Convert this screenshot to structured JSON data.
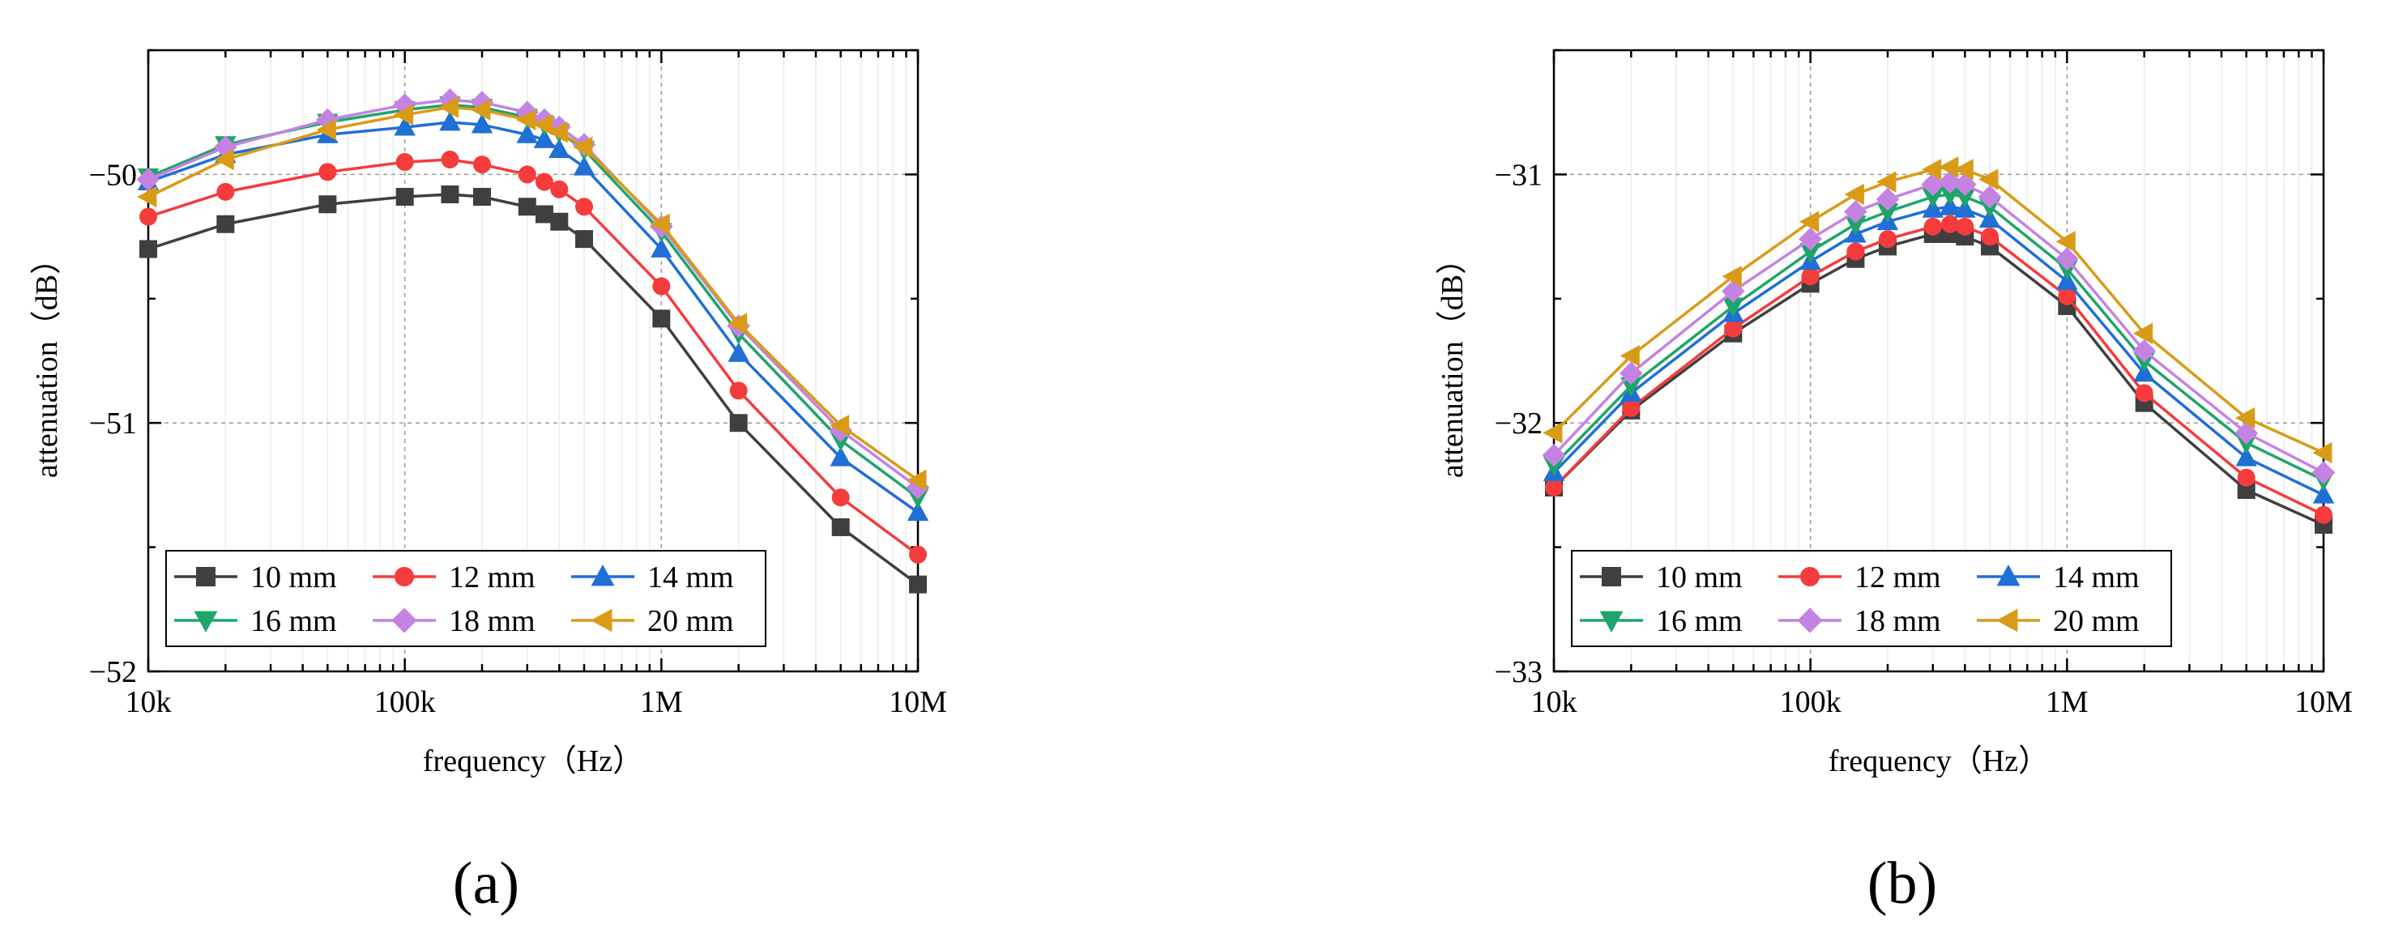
{
  "chart_data": [
    {
      "type": "line",
      "panel_label": "(a)",
      "xlabel": "frequency（Hz）",
      "ylabel": "attenuation（dB）",
      "xscale": "log",
      "xlim": [
        10000,
        10000000
      ],
      "ylim": [
        -52,
        -49.5
      ],
      "xticks": [
        {
          "value": 10000,
          "label": "10k"
        },
        {
          "value": 100000,
          "label": "100k"
        },
        {
          "value": 1000000,
          "label": "1M"
        },
        {
          "value": 10000000,
          "label": "10M"
        }
      ],
      "yticks": [
        {
          "value": -50,
          "label": "−50"
        },
        {
          "value": -51,
          "label": "−51"
        },
        {
          "value": -52,
          "label": "−52"
        }
      ],
      "legend_position": "bottom-left",
      "x": [
        10000,
        20000,
        50000,
        100000,
        150000,
        200000,
        300000,
        350000,
        400000,
        500000,
        1000000,
        2000000,
        5000000,
        10000000
      ],
      "series": [
        {
          "name": "10 mm",
          "color": "#3f3f3f",
          "marker": "square",
          "values": [
            -50.3,
            -50.2,
            -50.12,
            -50.09,
            -50.08,
            -50.09,
            -50.13,
            -50.16,
            -50.19,
            -50.26,
            -50.58,
            -51.0,
            -51.42,
            -51.65
          ]
        },
        {
          "name": "12 mm",
          "color": "#f53b3b",
          "marker": "circle",
          "values": [
            -50.17,
            -50.07,
            -49.99,
            -49.95,
            -49.94,
            -49.96,
            -50.0,
            -50.03,
            -50.06,
            -50.13,
            -50.45,
            -50.87,
            -51.3,
            -51.53
          ]
        },
        {
          "name": "14 mm",
          "color": "#1f6fd6",
          "marker": "triangle-up",
          "values": [
            -50.03,
            -49.92,
            -49.84,
            -49.81,
            -49.79,
            -49.8,
            -49.84,
            -49.86,
            -49.9,
            -49.97,
            -50.3,
            -50.72,
            -51.14,
            -51.36
          ]
        },
        {
          "name": "16 mm",
          "color": "#1fa56a",
          "marker": "triangle-down",
          "values": [
            -50.01,
            -49.88,
            -49.79,
            -49.74,
            -49.72,
            -49.73,
            -49.77,
            -49.8,
            -49.83,
            -49.9,
            -50.23,
            -50.64,
            -51.07,
            -51.3
          ]
        },
        {
          "name": "18 mm",
          "color": "#c483e3",
          "marker": "diamond",
          "values": [
            -50.02,
            -49.89,
            -49.78,
            -49.72,
            -49.7,
            -49.71,
            -49.75,
            -49.78,
            -49.81,
            -49.88,
            -50.21,
            -50.61,
            -51.03,
            -51.26
          ]
        },
        {
          "name": "20 mm",
          "color": "#d99b16",
          "marker": "triangle-left",
          "values": [
            -50.09,
            -49.94,
            -49.82,
            -49.76,
            -49.73,
            -49.74,
            -49.78,
            -49.8,
            -49.83,
            -49.89,
            -50.2,
            -50.6,
            -51.01,
            -51.23
          ]
        }
      ]
    },
    {
      "type": "line",
      "panel_label": "(b)",
      "xlabel": "frequency（Hz）",
      "ylabel": "attenuation（dB）",
      "xscale": "log",
      "xlim": [
        10000,
        10000000
      ],
      "ylim": [
        -33,
        -30.5
      ],
      "xticks": [
        {
          "value": 10000,
          "label": "10k"
        },
        {
          "value": 100000,
          "label": "100k"
        },
        {
          "value": 1000000,
          "label": "1M"
        },
        {
          "value": 10000000,
          "label": "10M"
        }
      ],
      "yticks": [
        {
          "value": -31,
          "label": "−31"
        },
        {
          "value": -32,
          "label": "−32"
        },
        {
          "value": -33,
          "label": "−33"
        }
      ],
      "legend_position": "bottom-left",
      "x": [
        10000,
        20000,
        50000,
        100000,
        150000,
        200000,
        300000,
        350000,
        400000,
        500000,
        1000000,
        2000000,
        5000000,
        10000000
      ],
      "series": [
        {
          "name": "10 mm",
          "color": "#3f3f3f",
          "marker": "square",
          "values": [
            -32.26,
            -31.95,
            -31.64,
            -31.44,
            -31.34,
            -31.29,
            -31.24,
            -31.24,
            -31.25,
            -31.29,
            -31.53,
            -31.92,
            -32.27,
            -32.41
          ]
        },
        {
          "name": "12 mm",
          "color": "#f53b3b",
          "marker": "circle",
          "values": [
            -32.26,
            -31.94,
            -31.62,
            -31.41,
            -31.31,
            -31.26,
            -31.21,
            -31.2,
            -31.21,
            -31.25,
            -31.49,
            -31.88,
            -32.22,
            -32.37
          ]
        },
        {
          "name": "14 mm",
          "color": "#1f6fd6",
          "marker": "triangle-up",
          "values": [
            -32.2,
            -31.88,
            -31.56,
            -31.35,
            -31.24,
            -31.19,
            -31.14,
            -31.13,
            -31.14,
            -31.18,
            -31.43,
            -31.8,
            -32.14,
            -32.29
          ]
        },
        {
          "name": "16 mm",
          "color": "#1fa56a",
          "marker": "triangle-down",
          "values": [
            -32.17,
            -31.85,
            -31.53,
            -31.31,
            -31.2,
            -31.15,
            -31.09,
            -31.08,
            -31.09,
            -31.13,
            -31.38,
            -31.75,
            -32.08,
            -32.23
          ]
        },
        {
          "name": "18 mm",
          "color": "#c483e3",
          "marker": "diamond",
          "values": [
            -32.13,
            -31.8,
            -31.47,
            -31.26,
            -31.15,
            -31.1,
            -31.04,
            -31.03,
            -31.04,
            -31.09,
            -31.34,
            -31.71,
            -32.04,
            -32.2
          ]
        },
        {
          "name": "20 mm",
          "color": "#d99b16",
          "marker": "triangle-left",
          "values": [
            -32.04,
            -31.73,
            -31.41,
            -31.19,
            -31.08,
            -31.03,
            -30.98,
            -30.97,
            -30.98,
            -31.02,
            -31.27,
            -31.64,
            -31.98,
            -32.12
          ]
        }
      ]
    }
  ]
}
